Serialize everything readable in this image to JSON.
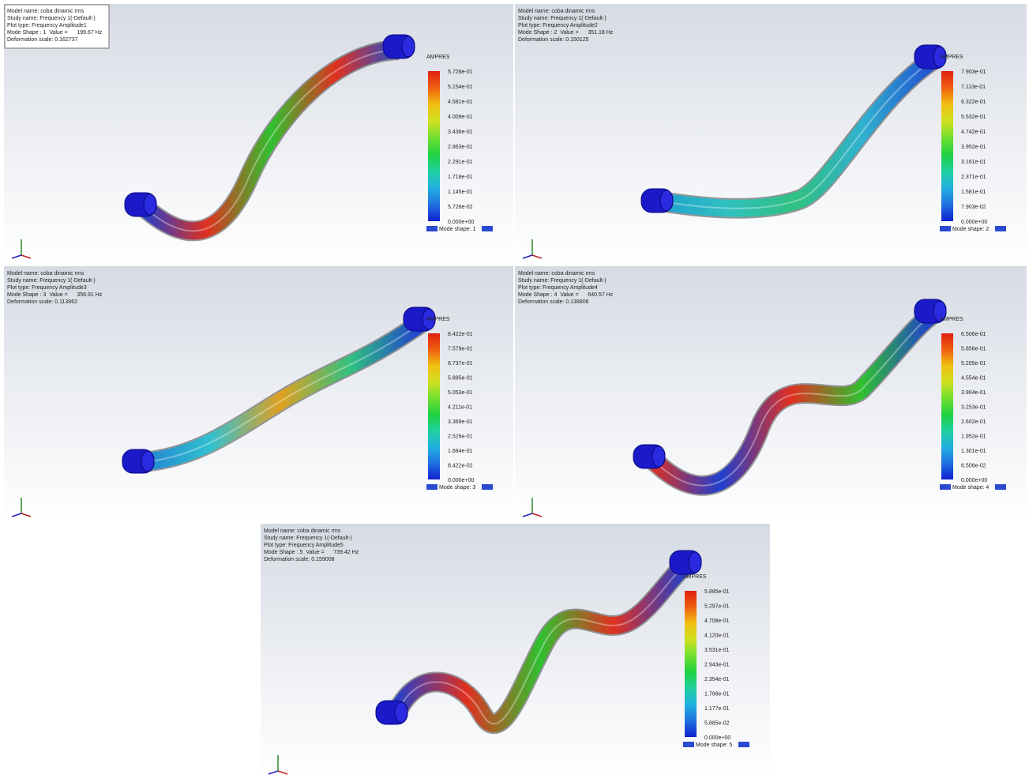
{
  "panels": [
    {
      "info": [
        "Model name: coba dinamic rms",
        "Study name: Frequency 1(-Default-)",
        "Plot type: Frequency Amplitude1",
        "Mode Shape : 1  Value =      199.67 Hz",
        "Deformation scale: 0.162737"
      ],
      "legend_title": "AMPRES",
      "legend_labels": [
        "5.726e-01",
        "5.154e-01",
        "4.581e-01",
        "4.009e-01",
        "3.436e-01",
        "2.863e-01",
        "2.291e-01",
        "1.718e-01",
        "1.145e-01",
        "5.726e-02",
        "0.000e+00"
      ],
      "mode_shape": "Mode shape: 1"
    },
    {
      "info": [
        "Model name: coba dinamic rms",
        "Study name: Frequency 1(-Default-)",
        "Plot type: Frequency Amplitude2",
        "Mode Shape : 2  Value =      351.18 Hz",
        "Deformation scale: 0.150125"
      ],
      "legend_title": "AMPRES",
      "legend_labels": [
        "7.903e-01",
        "7.113e-01",
        "6.322e-01",
        "5.532e-01",
        "4.742e-01",
        "3.952e-01",
        "3.161e-01",
        "2.371e-01",
        "1.581e-01",
        "7.903e-02",
        "0.000e+00"
      ],
      "mode_shape": "Mode shape: 2"
    },
    {
      "info": [
        "Model name: coba dinamic rms",
        "Study name: Frequency 1(-Default-)",
        "Plot type: Frequency Amplitude3",
        "Mode Shape : 3  Value =      356.91 Hz",
        "Deformation scale: 0.113962"
      ],
      "legend_title": "AMPRES",
      "legend_labels": [
        "8.422e-01",
        "7.579e-01",
        "6.737e-01",
        "5.895e-01",
        "5.053e-01",
        "4.211e-01",
        "3.369e-01",
        "2.526e-01",
        "1.684e-01",
        "8.422e-02",
        "0.000e+00"
      ],
      "mode_shape": "Mode shape: 3"
    },
    {
      "info": [
        "Model name: coba dinamic rms",
        "Study name: Frequency 1(-Default-)",
        "Plot type: Frequency Amplitude4",
        "Mode Shape : 4  Value =      640.57 Hz",
        "Deformation scale: 0.139806"
      ],
      "legend_title": "AMPRES",
      "legend_labels": [
        "6.506e-01",
        "5.856e-01",
        "5.205e-01",
        "4.554e-01",
        "3.904e-01",
        "3.253e-01",
        "2.602e-01",
        "1.952e-01",
        "1.301e-01",
        "6.506e-02",
        "0.000e+00"
      ],
      "mode_shape": "Mode shape: 4"
    },
    {
      "info": [
        "Model name: coba dinamic rms",
        "Study name: Frequency 1(-Default-)",
        "Plot type: Frequency Amplitude5",
        "Mode Shape : 5  Value =      739.42 Hz",
        "Deformation scale: 0.159008"
      ],
      "legend_title": "AMPRES",
      "legend_labels": [
        "5.885e-01",
        "5.297e-01",
        "4.708e-01",
        "4.120e-01",
        "3.531e-01",
        "2.943e-01",
        "2.354e-01",
        "1.766e-01",
        "1.177e-01",
        "5.885e-02",
        "0.000e+00"
      ],
      "mode_shape": "Mode shape: 5"
    }
  ]
}
